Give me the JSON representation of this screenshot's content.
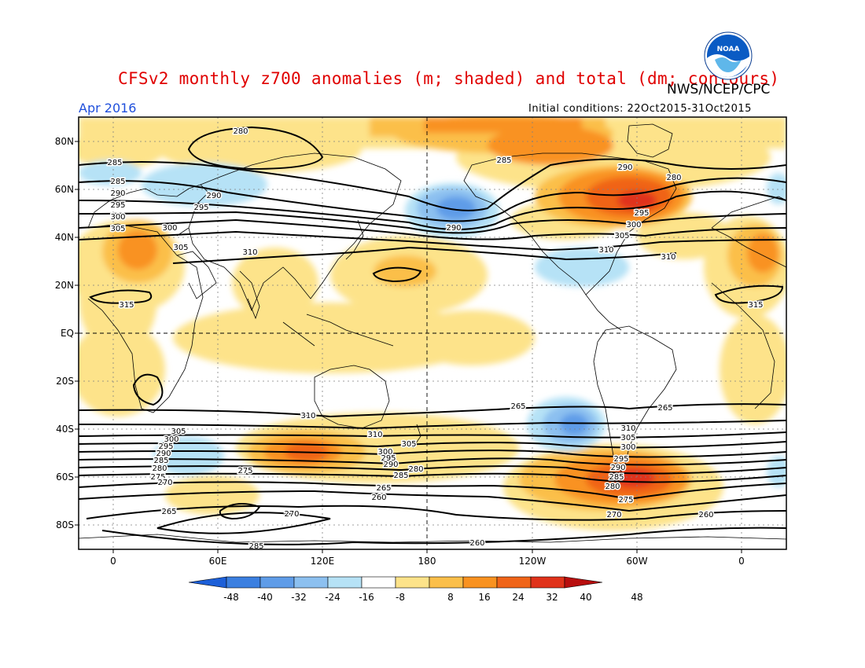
{
  "title": "CFSv2 monthly z700 anomalies (m; shaded) and total (dm; contours)",
  "agency": "NWS/NCEP/CPC",
  "period": "Apr 2016",
  "initial_conditions": "Initial conditions: 22Oct2015-31Oct2015",
  "logo_text": "NOAA",
  "lat_labels": [
    "80N",
    "60N",
    "40N",
    "20N",
    "EQ",
    "20S",
    "40S",
    "60S",
    "80S"
  ],
  "lon_labels": [
    "0",
    "60E",
    "120E",
    "180",
    "120W",
    "60W",
    "0"
  ],
  "colorbar": {
    "labels": [
      "-48",
      "-40",
      "-32",
      "-24",
      "-16",
      "-8",
      "8",
      "16",
      "24",
      "32",
      "40",
      "48"
    ],
    "colors": [
      "#1c5fd8",
      "#3b7fe0",
      "#5f9ce8",
      "#8cc0f0",
      "#b6e2f6",
      "#ffffff",
      "#fde38a",
      "#fbbf4a",
      "#f99220",
      "#f06418",
      "#e0321a",
      "#b80e0e"
    ]
  },
  "contour_labels": [
    {
      "t": "280"
    },
    {
      "t": "285"
    },
    {
      "t": "290"
    },
    {
      "t": "295"
    },
    {
      "t": "300"
    },
    {
      "t": "305"
    },
    {
      "t": "310"
    },
    {
      "t": "315"
    },
    {
      "t": "285"
    },
    {
      "t": "290"
    },
    {
      "t": "295"
    },
    {
      "t": "300"
    },
    {
      "t": "305"
    },
    {
      "t": "310"
    },
    {
      "t": "290"
    },
    {
      "t": "280"
    },
    {
      "t": "285"
    },
    {
      "t": "290"
    },
    {
      "t": "295"
    },
    {
      "t": "300"
    },
    {
      "t": "305"
    },
    {
      "t": "310"
    },
    {
      "t": "315"
    },
    {
      "t": "310"
    },
    {
      "t": "305"
    },
    {
      "t": "300"
    },
    {
      "t": "295"
    },
    {
      "t": "290"
    },
    {
      "t": "285"
    },
    {
      "t": "280"
    },
    {
      "t": "275"
    },
    {
      "t": "310"
    },
    {
      "t": "305"
    },
    {
      "t": "300"
    },
    {
      "t": "295"
    },
    {
      "t": "290"
    },
    {
      "t": "285"
    },
    {
      "t": "280"
    },
    {
      "t": "275"
    },
    {
      "t": "270"
    },
    {
      "t": "265"
    },
    {
      "t": "310"
    },
    {
      "t": "305"
    },
    {
      "t": "300"
    },
    {
      "t": "295"
    },
    {
      "t": "290"
    },
    {
      "t": "285"
    },
    {
      "t": "280"
    },
    {
      "t": "275"
    },
    {
      "t": "270"
    },
    {
      "t": "265"
    },
    {
      "t": "260"
    },
    {
      "t": "265"
    },
    {
      "t": "270"
    },
    {
      "t": "285"
    },
    {
      "t": "260"
    },
    {
      "t": "260"
    },
    {
      "t": "265"
    }
  ]
}
